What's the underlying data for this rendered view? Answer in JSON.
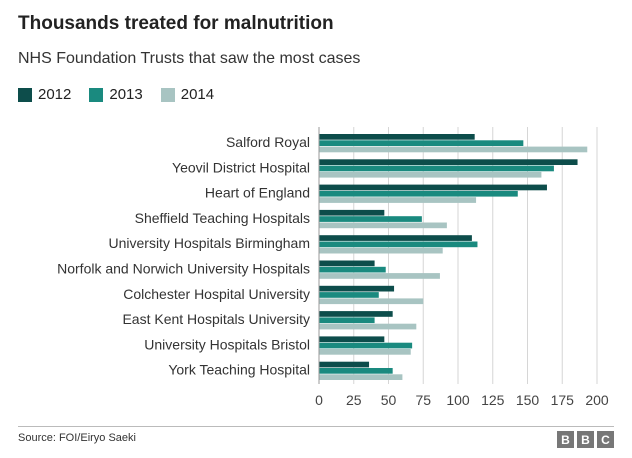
{
  "title": "Thousands treated for malnutrition",
  "subtitle": "NHS Foundation Trusts that saw the most cases",
  "source": "Source: FOI/Eiryo Saeki",
  "logo_text": "BBC",
  "logo_letters": [
    "B",
    "B",
    "C"
  ],
  "colors": {
    "2012": "#0d4d4b",
    "2013": "#1a8a7f",
    "2014": "#a8c4c2"
  },
  "chart_data": {
    "type": "bar",
    "orientation": "horizontal",
    "categories": [
      "Salford Royal",
      "Yeovil District Hospital",
      "Heart of England",
      "Sheffield Teaching Hospitals",
      "University Hospitals Birmingham",
      "Norfolk and Norwich University Hospitals",
      "Colchester Hospital University",
      "East Kent Hospitals University",
      "University Hospitals Bristol",
      "York Teaching Hospital"
    ],
    "series": [
      {
        "name": "2012",
        "values": [
          112,
          186,
          164,
          47,
          110,
          40,
          54,
          53,
          47,
          36
        ]
      },
      {
        "name": "2013",
        "values": [
          147,
          169,
          143,
          74,
          114,
          48,
          43,
          40,
          67,
          53
        ]
      },
      {
        "name": "2014",
        "values": [
          193,
          160,
          113,
          92,
          89,
          87,
          75,
          70,
          66,
          60
        ]
      }
    ],
    "xlim": [
      0,
      200
    ],
    "xticks": [
      0,
      25,
      50,
      75,
      100,
      125,
      150,
      175,
      200
    ],
    "grid": true,
    "legend_position": "top-left"
  }
}
